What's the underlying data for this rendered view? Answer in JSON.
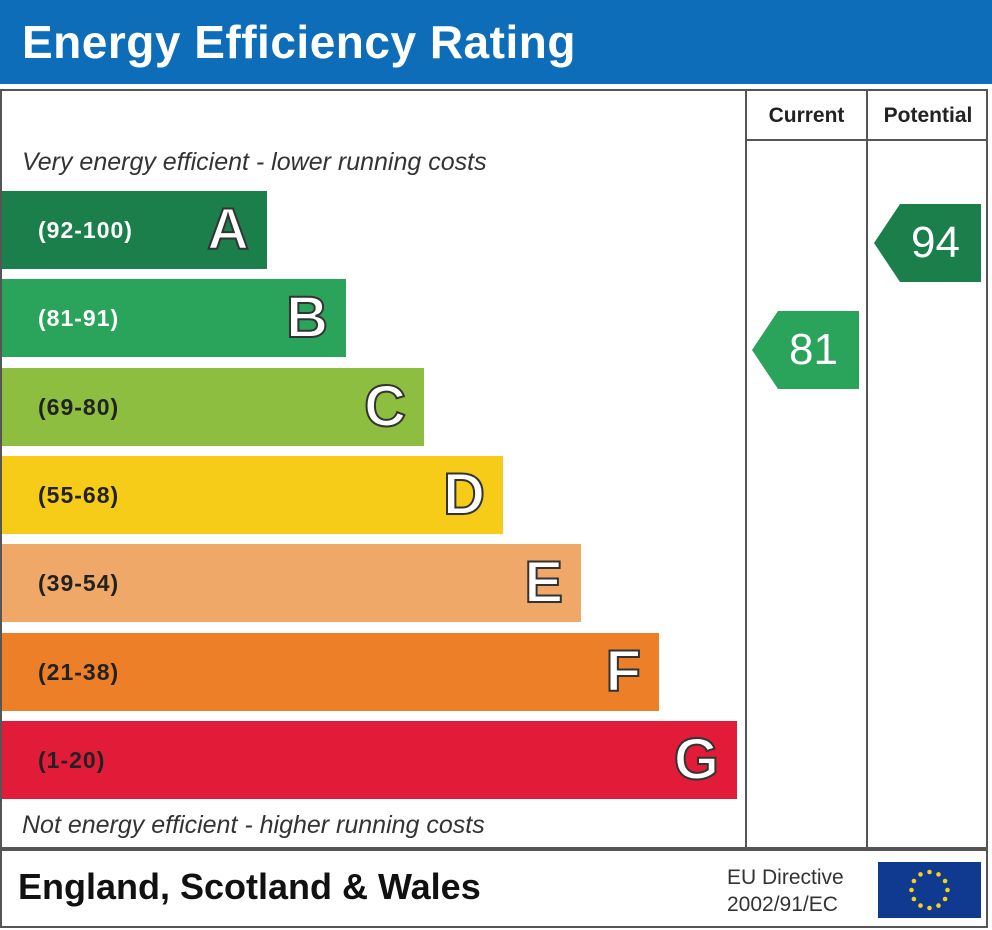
{
  "header": {
    "title": "Energy Efficiency Rating"
  },
  "columns": {
    "current": "Current",
    "potential": "Potential"
  },
  "top_note": "Very energy efficient - lower running costs",
  "bottom_note": "Not energy efficient - higher running costs",
  "chart_data": {
    "type": "bar",
    "title": "Energy Efficiency Rating",
    "bands": [
      {
        "letter": "A",
        "range": "(92-100)",
        "min": 92,
        "max": 100,
        "color": "#1a7f4b",
        "range_color": "#ffffff"
      },
      {
        "letter": "B",
        "range": "(81-91)",
        "min": 81,
        "max": 91,
        "color": "#2aa45a",
        "range_color": "#ffffff"
      },
      {
        "letter": "C",
        "range": "(69-80)",
        "min": 69,
        "max": 80,
        "color": "#8dbe3f",
        "range_color": "#222222"
      },
      {
        "letter": "D",
        "range": "(55-68)",
        "min": 55,
        "max": 68,
        "color": "#f7cc18",
        "range_color": "#222222"
      },
      {
        "letter": "E",
        "range": "(39-54)",
        "min": 39,
        "max": 54,
        "color": "#f0a868",
        "range_color": "#222222"
      },
      {
        "letter": "F",
        "range": "(21-38)",
        "min": 21,
        "max": 38,
        "color": "#ec7f28",
        "range_color": "#222222"
      },
      {
        "letter": "G",
        "range": "(1-20)",
        "min": 1,
        "max": 20,
        "color": "#e21b38",
        "range_color": "#222222"
      }
    ],
    "current": {
      "value": 81,
      "band": "B",
      "color": "#2aa45a"
    },
    "potential": {
      "value": 94,
      "band": "A",
      "color": "#1a7f4b"
    }
  },
  "footer": {
    "region": "England, Scotland & Wales",
    "directive_line1": "EU Directive",
    "directive_line2": "2002/91/EC",
    "flag_color": "#0f3a8f",
    "star_color": "#f7d117"
  }
}
